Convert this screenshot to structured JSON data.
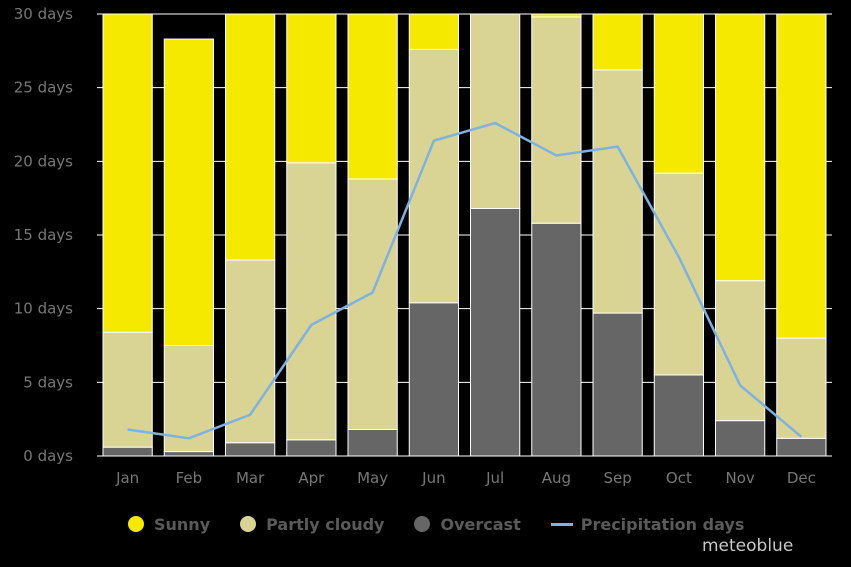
{
  "chart_data": {
    "type": "bar",
    "stacked": true,
    "categories": [
      "Jan",
      "Feb",
      "Mar",
      "Apr",
      "May",
      "Jun",
      "Jul",
      "Aug",
      "Sep",
      "Oct",
      "Nov",
      "Dec"
    ],
    "y_ticks": [
      "0 days",
      "5 days",
      "10 days",
      "15 days",
      "20 days",
      "25 days",
      "30 days"
    ],
    "ylim": [
      0,
      30
    ],
    "grid": true,
    "series": [
      {
        "name": "Overcast",
        "color": "#666666",
        "values": [
          0.6,
          0.3,
          0.9,
          1.1,
          1.8,
          10.4,
          16.8,
          15.8,
          9.7,
          5.5,
          2.4,
          1.2
        ]
      },
      {
        "name": "Partly cloudy",
        "color": "#d9d494",
        "values": [
          7.8,
          7.2,
          12.4,
          18.8,
          17.0,
          17.2,
          13.2,
          14.0,
          16.5,
          13.7,
          9.5,
          6.8
        ]
      },
      {
        "name": "Sunny",
        "color": "#f5e900",
        "values": [
          21.6,
          20.8,
          16.7,
          10.1,
          11.2,
          2.4,
          0.0,
          0.2,
          3.8,
          10.8,
          18.1,
          22.0
        ]
      }
    ],
    "line": {
      "name": "Precipitation days",
      "color": "#7fb1e1",
      "values": [
        1.8,
        1.2,
        2.8,
        8.9,
        11.1,
        21.4,
        22.6,
        20.4,
        21.0,
        13.5,
        4.8,
        1.3
      ]
    },
    "legend": {
      "position": "bottom",
      "items": [
        {
          "label": "Sunny",
          "color": "#f5e900",
          "shape": "dot"
        },
        {
          "label": "Partly cloudy",
          "color": "#d9d494",
          "shape": "dot"
        },
        {
          "label": "Overcast",
          "color": "#666666",
          "shape": "dot"
        },
        {
          "label": "Precipitation days",
          "color": "#7fb1e1",
          "shape": "line"
        }
      ]
    }
  },
  "brand": "meteoblue"
}
